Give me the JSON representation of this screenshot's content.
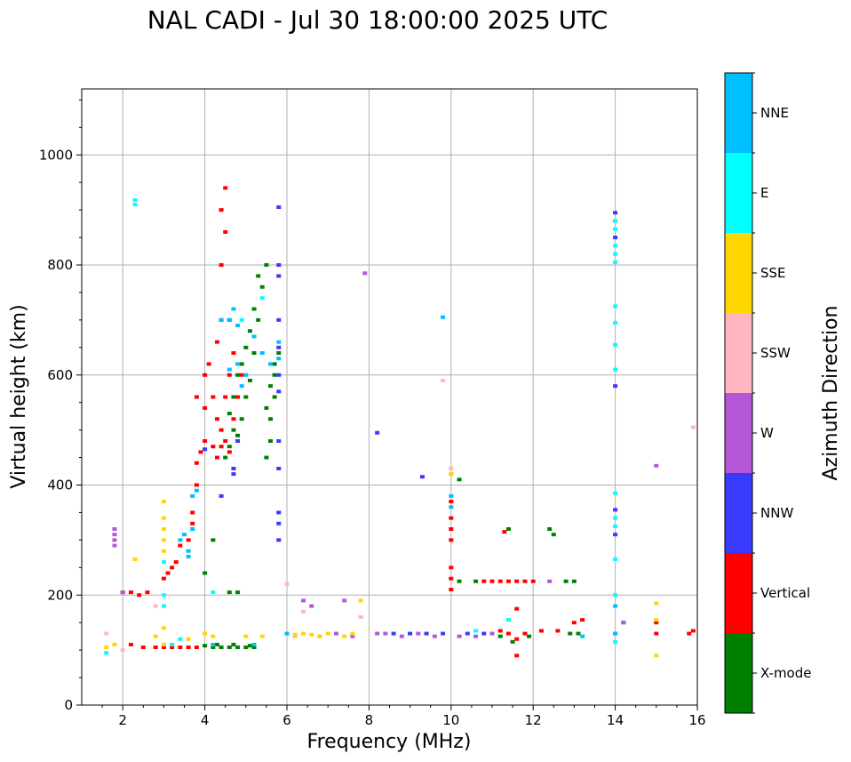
{
  "chart_data": {
    "type": "scatter",
    "title": "NAL CADI - Jul 30 18:00:00 2025 UTC",
    "xlabel": "Frequency (MHz)",
    "ylabel": "Virtual height (km)",
    "xlim": [
      1,
      16
    ],
    "ylim": [
      0,
      1120
    ],
    "xticks": [
      2,
      4,
      6,
      8,
      10,
      12,
      14,
      16
    ],
    "xtick_labels": [
      "2",
      "4",
      "6",
      "8",
      "10",
      "12",
      "14",
      "16"
    ],
    "yticks": [
      0,
      200,
      400,
      600,
      800,
      1000
    ],
    "ytick_labels": [
      "0",
      "200",
      "400",
      "600",
      "800",
      "1000"
    ],
    "grid": true,
    "colorbar": {
      "label": "Azimuth Direction",
      "categories": [
        {
          "name": "X-mode",
          "color": "#008000"
        },
        {
          "name": "Vertical",
          "color": "#ff0000"
        },
        {
          "name": "NNW",
          "color": "#3a3aff"
        },
        {
          "name": "W",
          "color": "#b558d8"
        },
        {
          "name": "SSW",
          "color": "#ffb6c1"
        },
        {
          "name": "SSE",
          "color": "#ffd700"
        },
        {
          "name": "E",
          "color": "#00ffff"
        },
        {
          "name": "NNE",
          "color": "#00bfff"
        }
      ]
    },
    "series": [
      {
        "name": "X-mode",
        "points": [
          [
            4.2,
            105
          ],
          [
            4.4,
            105
          ],
          [
            4.6,
            105
          ],
          [
            4.8,
            105
          ],
          [
            5.0,
            105
          ],
          [
            5.2,
            105
          ],
          [
            4.0,
            108
          ],
          [
            4.3,
            110
          ],
          [
            4.7,
            110
          ],
          [
            5.1,
            108
          ],
          [
            4.6,
            205
          ],
          [
            4.8,
            205
          ],
          [
            4.2,
            300
          ],
          [
            4.0,
            240
          ],
          [
            4.5,
            450
          ],
          [
            4.6,
            470
          ],
          [
            4.7,
            500
          ],
          [
            4.8,
            490
          ],
          [
            4.9,
            520
          ],
          [
            5.0,
            560
          ],
          [
            5.1,
            590
          ],
          [
            5.2,
            640
          ],
          [
            5.3,
            700
          ],
          [
            5.4,
            760
          ],
          [
            5.5,
            800
          ],
          [
            4.6,
            530
          ],
          [
            4.7,
            560
          ],
          [
            4.8,
            600
          ],
          [
            4.9,
            620
          ],
          [
            5.0,
            650
          ],
          [
            5.1,
            680
          ],
          [
            5.2,
            720
          ],
          [
            5.3,
            780
          ],
          [
            5.5,
            450
          ],
          [
            5.6,
            480
          ],
          [
            5.6,
            520
          ],
          [
            5.7,
            560
          ],
          [
            5.7,
            600
          ],
          [
            5.8,
            640
          ],
          [
            5.5,
            540
          ],
          [
            5.6,
            580
          ],
          [
            5.7,
            620
          ],
          [
            10.2,
            225
          ],
          [
            10.6,
            225
          ],
          [
            10.2,
            410
          ],
          [
            11.4,
            320
          ],
          [
            12.4,
            320
          ],
          [
            12.5,
            310
          ],
          [
            12.9,
            130
          ],
          [
            13.1,
            130
          ],
          [
            12.8,
            225
          ],
          [
            13.0,
            225
          ],
          [
            11.2,
            125
          ],
          [
            11.5,
            115
          ],
          [
            11.9,
            125
          ]
        ]
      },
      {
        "name": "Vertical",
        "points": [
          [
            2.0,
            205
          ],
          [
            2.2,
            205
          ],
          [
            2.4,
            200
          ],
          [
            2.6,
            205
          ],
          [
            2.2,
            110
          ],
          [
            2.5,
            105
          ],
          [
            2.8,
            105
          ],
          [
            3.0,
            105
          ],
          [
            3.2,
            105
          ],
          [
            3.4,
            105
          ],
          [
            3.6,
            105
          ],
          [
            3.8,
            105
          ],
          [
            3.0,
            230
          ],
          [
            3.1,
            240
          ],
          [
            3.2,
            250
          ],
          [
            3.3,
            260
          ],
          [
            3.4,
            290
          ],
          [
            3.6,
            300
          ],
          [
            3.7,
            330
          ],
          [
            3.7,
            350
          ],
          [
            3.8,
            400
          ],
          [
            3.8,
            440
          ],
          [
            3.9,
            460
          ],
          [
            4.0,
            480
          ],
          [
            3.8,
            560
          ],
          [
            4.0,
            540
          ],
          [
            4.2,
            560
          ],
          [
            4.3,
            520
          ],
          [
            4.4,
            500
          ],
          [
            4.5,
            560
          ],
          [
            4.6,
            600
          ],
          [
            4.7,
            640
          ],
          [
            4.0,
            600
          ],
          [
            4.1,
            620
          ],
          [
            4.3,
            660
          ],
          [
            4.4,
            700
          ],
          [
            4.4,
            800
          ],
          [
            4.5,
            860
          ],
          [
            4.4,
            900
          ],
          [
            4.5,
            940
          ],
          [
            4.2,
            470
          ],
          [
            4.4,
            470
          ],
          [
            4.6,
            460
          ],
          [
            4.3,
            450
          ],
          [
            4.5,
            480
          ],
          [
            4.7,
            520
          ],
          [
            4.8,
            560
          ],
          [
            4.9,
            600
          ],
          [
            10.0,
            210
          ],
          [
            10.0,
            230
          ],
          [
            10.0,
            250
          ],
          [
            10.0,
            300
          ],
          [
            10.0,
            320
          ],
          [
            10.0,
            340
          ],
          [
            10.0,
            370
          ],
          [
            10.8,
            225
          ],
          [
            11.0,
            225
          ],
          [
            11.2,
            225
          ],
          [
            11.4,
            225
          ],
          [
            11.6,
            225
          ],
          [
            11.8,
            225
          ],
          [
            12.0,
            225
          ],
          [
            11.0,
            130
          ],
          [
            11.2,
            135
          ],
          [
            11.4,
            130
          ],
          [
            11.6,
            120
          ],
          [
            11.8,
            130
          ],
          [
            12.2,
            135
          ],
          [
            12.6,
            135
          ],
          [
            13.0,
            150
          ],
          [
            13.2,
            155
          ],
          [
            11.6,
            90
          ],
          [
            11.6,
            175
          ],
          [
            11.3,
            315
          ],
          [
            15.0,
            130
          ],
          [
            15.0,
            150
          ],
          [
            15.8,
            130
          ],
          [
            15.9,
            135
          ]
        ]
      },
      {
        "name": "NNW",
        "points": [
          [
            5.8,
            430
          ],
          [
            5.8,
            480
          ],
          [
            5.8,
            570
          ],
          [
            5.8,
            600
          ],
          [
            5.8,
            650
          ],
          [
            5.8,
            700
          ],
          [
            5.8,
            780
          ],
          [
            5.8,
            800
          ],
          [
            5.8,
            905
          ],
          [
            5.8,
            330
          ],
          [
            5.8,
            350
          ],
          [
            5.8,
            300
          ],
          [
            4.7,
            420
          ],
          [
            4.7,
            430
          ],
          [
            4.4,
            380
          ],
          [
            4.6,
            700
          ],
          [
            4.0,
            465
          ],
          [
            4.8,
            480
          ],
          [
            8.6,
            130
          ],
          [
            9.0,
            130
          ],
          [
            9.4,
            130
          ],
          [
            9.8,
            130
          ],
          [
            10.4,
            130
          ],
          [
            10.8,
            130
          ],
          [
            8.2,
            495
          ],
          [
            9.3,
            415
          ],
          [
            14.0,
            130
          ],
          [
            14.0,
            355
          ],
          [
            14.0,
            310
          ],
          [
            14.0,
            580
          ],
          [
            14.0,
            850
          ],
          [
            14.0,
            880
          ],
          [
            14.0,
            895
          ],
          [
            14.2,
            150
          ]
        ]
      },
      {
        "name": "W",
        "points": [
          [
            1.8,
            290
          ],
          [
            1.8,
            300
          ],
          [
            1.8,
            310
          ],
          [
            1.8,
            320
          ],
          [
            6.4,
            190
          ],
          [
            6.6,
            180
          ],
          [
            7.2,
            130
          ],
          [
            7.6,
            125
          ],
          [
            7.9,
            785
          ],
          [
            8.2,
            130
          ],
          [
            8.4,
            130
          ],
          [
            8.8,
            125
          ],
          [
            9.2,
            130
          ],
          [
            9.6,
            125
          ],
          [
            10.2,
            125
          ],
          [
            10.6,
            125
          ],
          [
            11.0,
            130
          ],
          [
            12.4,
            225
          ],
          [
            14.2,
            150
          ],
          [
            15.0,
            435
          ],
          [
            7.4,
            190
          ],
          [
            6.8,
            125
          ],
          [
            2.0,
            205
          ]
        ]
      },
      {
        "name": "SSW",
        "points": [
          [
            2.0,
            100
          ],
          [
            1.6,
            130
          ],
          [
            2.8,
            180
          ],
          [
            6.0,
            220
          ],
          [
            6.4,
            170
          ],
          [
            9.8,
            590
          ],
          [
            10.0,
            430
          ],
          [
            10.0,
            420
          ],
          [
            15.9,
            505
          ],
          [
            7.8,
            160
          ],
          [
            6.2,
            125
          ],
          [
            1.8,
            110
          ]
        ]
      },
      {
        "name": "SSE",
        "points": [
          [
            1.6,
            105
          ],
          [
            1.8,
            110
          ],
          [
            2.3,
            265
          ],
          [
            3.0,
            280
          ],
          [
            3.0,
            300
          ],
          [
            3.0,
            320
          ],
          [
            3.0,
            340
          ],
          [
            3.0,
            370
          ],
          [
            3.0,
            110
          ],
          [
            3.0,
            140
          ],
          [
            3.0,
            180
          ],
          [
            2.8,
            125
          ],
          [
            4.2,
            125
          ],
          [
            5.0,
            125
          ],
          [
            5.4,
            125
          ],
          [
            6.2,
            128
          ],
          [
            6.4,
            130
          ],
          [
            6.6,
            128
          ],
          [
            6.8,
            125
          ],
          [
            7.0,
            130
          ],
          [
            7.4,
            125
          ],
          [
            7.6,
            130
          ],
          [
            7.8,
            190
          ],
          [
            10.0,
            420
          ],
          [
            15.0,
            90
          ],
          [
            15.0,
            155
          ],
          [
            15.0,
            185
          ],
          [
            3.6,
            120
          ],
          [
            4.0,
            130
          ]
        ]
      },
      {
        "name": "E",
        "points": [
          [
            2.3,
            910
          ],
          [
            2.3,
            918
          ],
          [
            1.6,
            95
          ],
          [
            3.0,
            200
          ],
          [
            3.0,
            260
          ],
          [
            3.0,
            180
          ],
          [
            3.2,
            110
          ],
          [
            3.4,
            120
          ],
          [
            4.2,
            205
          ],
          [
            4.9,
            700
          ],
          [
            5.4,
            740
          ],
          [
            14.0,
            115
          ],
          [
            14.0,
            200
          ],
          [
            14.0,
            265
          ],
          [
            14.0,
            325
          ],
          [
            14.0,
            340
          ],
          [
            14.0,
            385
          ],
          [
            14.0,
            610
          ],
          [
            14.0,
            655
          ],
          [
            14.0,
            695
          ],
          [
            14.0,
            725
          ],
          [
            14.0,
            805
          ],
          [
            14.0,
            820
          ],
          [
            14.0,
            835
          ],
          [
            14.0,
            865
          ],
          [
            14.0,
            880
          ],
          [
            11.4,
            155
          ],
          [
            10.6,
            135
          ]
        ]
      },
      {
        "name": "NNE",
        "points": [
          [
            3.4,
            300
          ],
          [
            3.5,
            310
          ],
          [
            3.6,
            280
          ],
          [
            3.7,
            320
          ],
          [
            3.6,
            270
          ],
          [
            3.7,
            380
          ],
          [
            3.8,
            390
          ],
          [
            4.4,
            700
          ],
          [
            4.6,
            700
          ],
          [
            4.7,
            720
          ],
          [
            4.8,
            690
          ],
          [
            4.6,
            610
          ],
          [
            4.8,
            620
          ],
          [
            4.9,
            580
          ],
          [
            5.0,
            600
          ],
          [
            5.2,
            670
          ],
          [
            5.4,
            640
          ],
          [
            5.6,
            620
          ],
          [
            5.8,
            630
          ],
          [
            5.8,
            660
          ],
          [
            6.0,
            130
          ],
          [
            9.8,
            705
          ],
          [
            10.0,
            360
          ],
          [
            10.0,
            380
          ],
          [
            14.0,
            130
          ],
          [
            14.0,
            180
          ],
          [
            13.2,
            125
          ],
          [
            4.2,
            110
          ],
          [
            5.2,
            110
          ]
        ]
      }
    ]
  }
}
